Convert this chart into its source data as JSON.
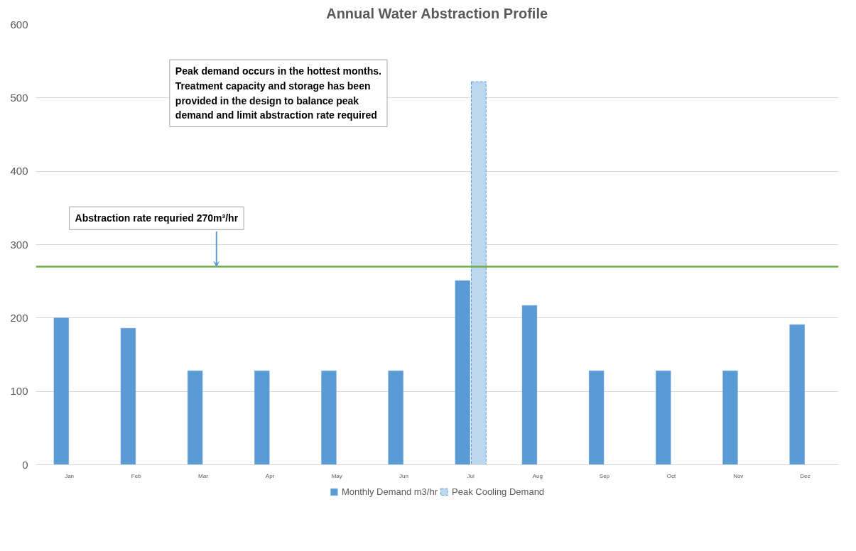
{
  "chart_data": {
    "type": "bar",
    "title": "Annual Water Abstraction Profile",
    "categories": [
      "Jan",
      "Feb",
      "Mar",
      "Apr",
      "May",
      "Jun",
      "Jul",
      "Aug",
      "Sep",
      "Oct",
      "Nov",
      "Dec"
    ],
    "series": [
      {
        "name": "Monthly Demand m3/hr",
        "color": "#5b9bd5",
        "values": [
          200,
          186,
          128,
          128,
          128,
          128,
          251,
          217,
          128,
          128,
          128,
          191
        ]
      },
      {
        "name": "Peak Cooling Demand",
        "color": "#bdd7ee",
        "line_style": "dashed",
        "values": [
          null,
          null,
          null,
          null,
          null,
          null,
          522,
          null,
          null,
          null,
          null,
          null
        ]
      }
    ],
    "ylim": [
      0,
      600
    ],
    "yticks": [
      0,
      100,
      200,
      300,
      400,
      500,
      600
    ],
    "ref_lines": [
      {
        "axis": "y",
        "value": 270,
        "label": "Abstraction rate requried 270m³/hr",
        "color": "#70ad47"
      }
    ],
    "annotations": [
      "Peak demand occurs in the hottest months.\nTreatment capacity and storage has been\nprovided in the design  to balance peak\ndemand and limit abstraction rate required"
    ],
    "grid": "y",
    "legend": "bottom"
  }
}
